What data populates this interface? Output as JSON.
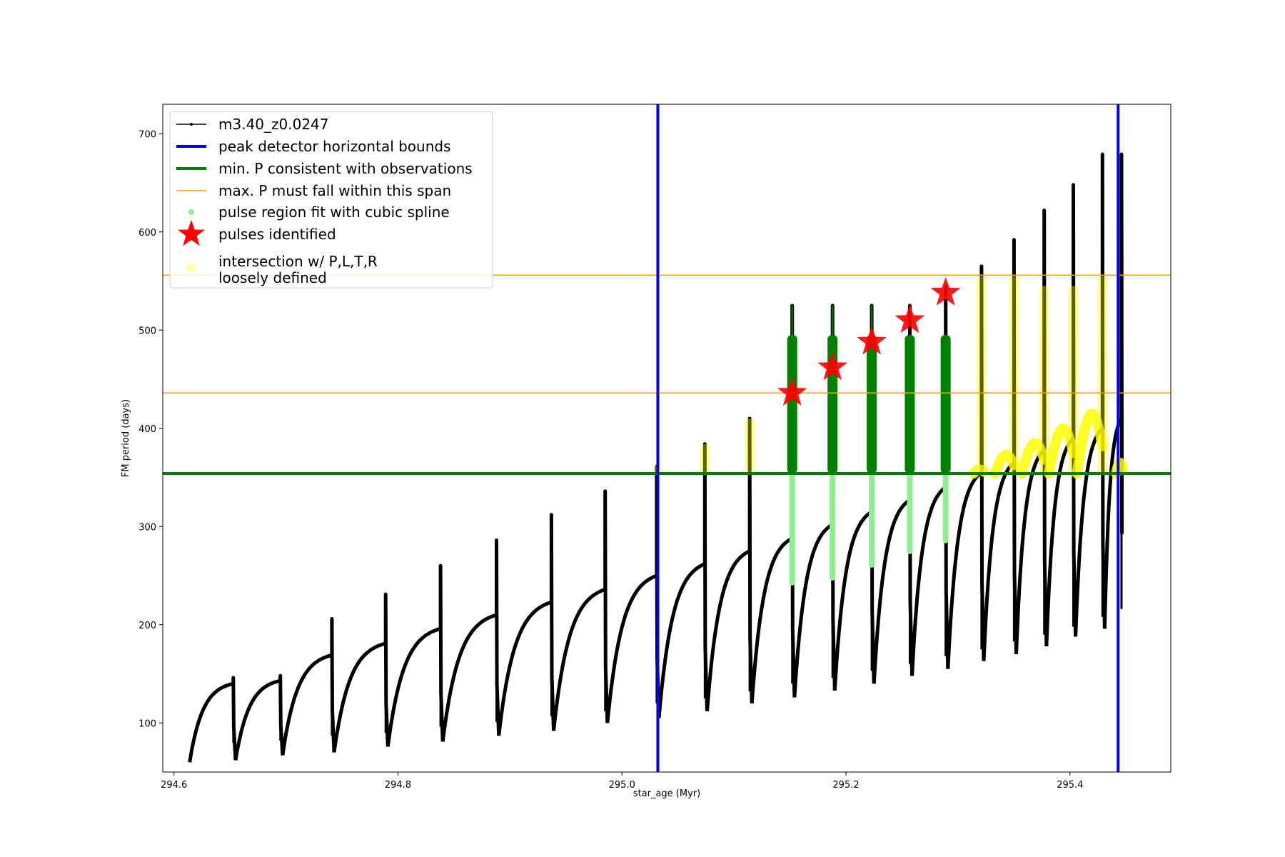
{
  "chart_data": {
    "type": "line",
    "xlabel": "star_age (Myr)",
    "ylabel": "FM period (days)",
    "xlim": [
      294.59,
      295.49
    ],
    "ylim": [
      50,
      730
    ],
    "xticks": [
      294.6,
      294.8,
      295.0,
      295.2,
      295.4
    ],
    "xtick_labels": [
      "294.6",
      "294.8",
      "295.0",
      "295.2",
      "295.4"
    ],
    "yticks": [
      100,
      200,
      300,
      400,
      500,
      600,
      700
    ],
    "ytick_labels": [
      "100",
      "200",
      "300",
      "400",
      "500",
      "600",
      "700"
    ],
    "grid": false,
    "legend_position": "upper-left",
    "colors": {
      "track": "#000000",
      "bounds": "#0000ff",
      "min_p": "#008000",
      "max_p": "#ffa500",
      "spline": "#90ee90",
      "pulse_region": "#008000",
      "star": "#ff0000",
      "intersection": "#ffff00"
    },
    "series": [
      {
        "name": "m3.40_z0.0247",
        "role": "track",
        "cycles": [
          {
            "start": 294.614,
            "end": 294.653,
            "min": 60,
            "max": 140,
            "spike": 146
          },
          {
            "start": 294.655,
            "end": 294.695,
            "min": 62,
            "max": 143,
            "spike": 148
          },
          {
            "start": 294.697,
            "end": 294.741,
            "min": 67,
            "max": 169,
            "spike": 206
          },
          {
            "start": 294.743,
            "end": 294.789,
            "min": 70,
            "max": 181,
            "spike": 231
          },
          {
            "start": 294.791,
            "end": 294.838,
            "min": 76,
            "max": 196,
            "spike": 260
          },
          {
            "start": 294.84,
            "end": 294.888,
            "min": 81,
            "max": 210,
            "spike": 286
          },
          {
            "start": 294.89,
            "end": 294.937,
            "min": 87,
            "max": 223,
            "spike": 312
          },
          {
            "start": 294.939,
            "end": 294.985,
            "min": 92,
            "max": 236,
            "spike": 336
          },
          {
            "start": 294.987,
            "end": 295.031,
            "min": 100,
            "max": 250,
            "spike": 361
          },
          {
            "start": 295.033,
            "end": 295.074,
            "min": 105,
            "max": 262,
            "spike": 384
          },
          {
            "start": 295.076,
            "end": 295.114,
            "min": 112,
            "max": 275,
            "spike": 410
          },
          {
            "start": 295.116,
            "end": 295.152,
            "min": 120,
            "max": 288,
            "spike": 525
          },
          {
            "start": 295.154,
            "end": 295.188,
            "min": 126,
            "max": 302,
            "spike": 525
          },
          {
            "start": 295.19,
            "end": 295.223,
            "min": 133,
            "max": 315,
            "spike": 525
          },
          {
            "start": 295.225,
            "end": 295.257,
            "min": 140,
            "max": 327,
            "spike": 525
          },
          {
            "start": 295.259,
            "end": 295.289,
            "min": 148,
            "max": 340,
            "spike": 545
          },
          {
            "start": 295.291,
            "end": 295.321,
            "min": 155,
            "max": 355,
            "spike": 565
          },
          {
            "start": 295.323,
            "end": 295.35,
            "min": 163,
            "max": 365,
            "spike": 592
          },
          {
            "start": 295.352,
            "end": 295.377,
            "min": 170,
            "max": 378,
            "spike": 622
          },
          {
            "start": 295.379,
            "end": 295.403,
            "min": 178,
            "max": 390,
            "spike": 648
          },
          {
            "start": 295.405,
            "end": 295.429,
            "min": 188,
            "max": 400,
            "spike": 679
          },
          {
            "start": 295.431,
            "end": 295.446,
            "min": 196,
            "max": 410,
            "spike": 679
          }
        ]
      },
      {
        "name": "peak detector horizontal bounds",
        "role": "vline",
        "x": [
          295.032,
          295.443
        ]
      },
      {
        "name": "min. P consistent with observations",
        "role": "hline",
        "y": 354
      },
      {
        "name": "max. P must fall within this span",
        "role": "hline",
        "y": [
          436,
          556
        ]
      },
      {
        "name": "pulse region fit with cubic spline",
        "role": "spline",
        "points": [
          {
            "x": 295.152,
            "ylow": 240,
            "yhigh": 354
          },
          {
            "x": 295.188,
            "ylow": 245,
            "yhigh": 354
          },
          {
            "x": 295.223,
            "ylow": 258,
            "yhigh": 354
          },
          {
            "x": 295.257,
            "ylow": 272,
            "yhigh": 354
          },
          {
            "x": 295.289,
            "ylow": 283,
            "yhigh": 354
          }
        ]
      },
      {
        "name": "pulse region",
        "role": "pulse_region",
        "points": [
          {
            "x": 295.152,
            "ylow": 354,
            "yhigh": 495,
            "tip": 525
          },
          {
            "x": 295.188,
            "ylow": 354,
            "yhigh": 495,
            "tip": 525
          },
          {
            "x": 295.223,
            "ylow": 354,
            "yhigh": 495,
            "tip": 525
          },
          {
            "x": 295.257,
            "ylow": 354,
            "yhigh": 495,
            "tip": 495
          },
          {
            "x": 295.289,
            "ylow": 354,
            "yhigh": 495,
            "tip": 495
          }
        ]
      },
      {
        "name": "pulses identified",
        "role": "stars",
        "points": [
          {
            "x": 295.152,
            "y": 436
          },
          {
            "x": 295.188,
            "y": 462
          },
          {
            "x": 295.223,
            "y": 488
          },
          {
            "x": 295.257,
            "y": 510
          },
          {
            "x": 295.289,
            "y": 538
          }
        ]
      },
      {
        "name": "intersection w/ P,L,T,R\nloosely defined",
        "role": "intersection",
        "spikes": [
          {
            "x": 295.032,
            "ylow": 354,
            "yhigh": 362
          },
          {
            "x": 295.074,
            "ylow": 354,
            "yhigh": 384
          },
          {
            "x": 295.114,
            "ylow": 354,
            "yhigh": 410
          },
          {
            "x": 295.321,
            "ylow": 354,
            "yhigh": 555
          },
          {
            "x": 295.35,
            "ylow": 354,
            "yhigh": 555
          },
          {
            "x": 295.377,
            "ylow": 354,
            "yhigh": 545
          },
          {
            "x": 295.403,
            "ylow": 354,
            "yhigh": 545
          },
          {
            "x": 295.429,
            "ylow": 354,
            "yhigh": 555
          }
        ],
        "arcs": [
          {
            "start": 295.314,
            "end": 295.323,
            "peak": 358
          },
          {
            "start": 295.333,
            "end": 295.35,
            "peak": 373
          },
          {
            "start": 295.357,
            "end": 295.377,
            "peak": 385
          },
          {
            "start": 295.381,
            "end": 295.403,
            "peak": 400
          },
          {
            "start": 295.406,
            "end": 295.429,
            "peak": 415
          },
          {
            "start": 295.441,
            "end": 295.447,
            "peak": 365
          }
        ]
      }
    ],
    "legend": [
      {
        "label": "m3.40_z0.0247",
        "symbol": "line-dot"
      },
      {
        "label": "peak detector horizontal bounds",
        "symbol": "thick-blue"
      },
      {
        "label": "min. P consistent with observations",
        "symbol": "thick-green"
      },
      {
        "label": "max. P must fall within this span",
        "symbol": "thin-orange"
      },
      {
        "label": "pulse region fit with cubic spline",
        "symbol": "green-dot"
      },
      {
        "label": "pulses identified",
        "symbol": "red-star"
      },
      {
        "label": "intersection w/ P,L,T,R",
        "label2": "loosely defined",
        "symbol": "yellow-dot"
      }
    ]
  }
}
